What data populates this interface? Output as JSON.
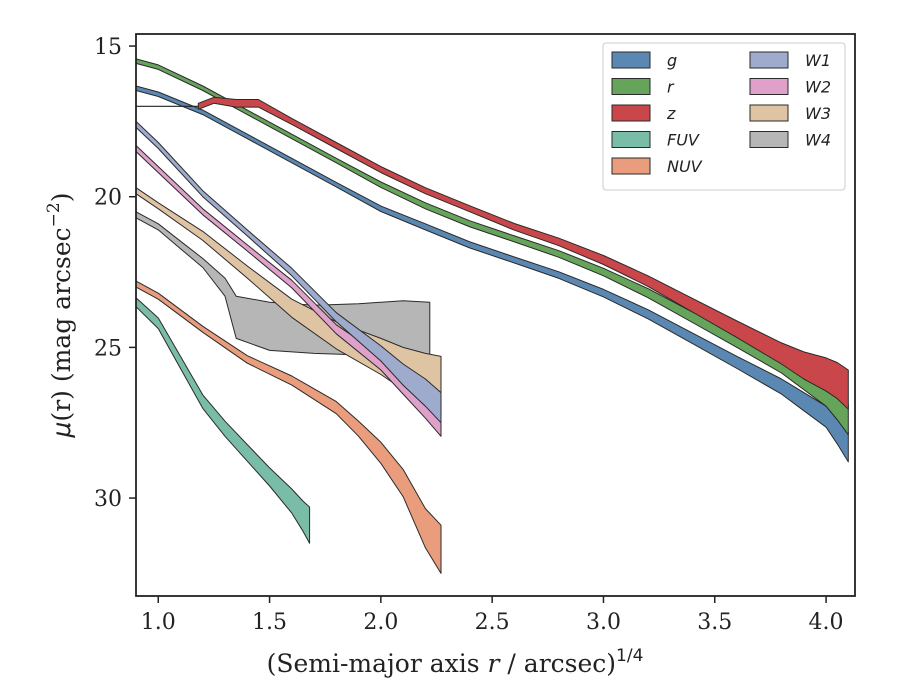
{
  "chart_data": {
    "type": "area",
    "xlabel": "(Semi-major axis r / arcsec)",
    "xlabel_prefix": "(Semi-major axis ",
    "xlabel_var": "r",
    "xlabel_suffix": " / arcsec)",
    "xlabel_sup": "1/4",
    "ylabel": "μ(r) (mag arcsec⁻²)",
    "ylabel_mu": "μ",
    "ylabel_paren": "(r)",
    "ylabel_unit": " (mag arcsec",
    "ylabel_sup": "−2",
    "ylabel_close": ")",
    "xlim": [
      0.9,
      4.13
    ],
    "ylim": [
      33.25,
      14.6
    ],
    "y_inverted": true,
    "xticks": [
      "1.0",
      "1.5",
      "2.0",
      "2.5",
      "3.0",
      "3.5",
      "4.0"
    ],
    "xtick_values": [
      1.0,
      1.5,
      2.0,
      2.5,
      3.0,
      3.5,
      4.0
    ],
    "yticks": [
      "15",
      "20",
      "25",
      "30"
    ],
    "ytick_values": [
      15,
      20,
      25,
      30
    ],
    "grid": false,
    "legend_placement": "top-right",
    "legend_columns": 2,
    "series": [
      {
        "name": "g",
        "color": "#5b88b2",
        "x": [
          0.9,
          1.0,
          1.2,
          1.4,
          1.6,
          1.8,
          2.0,
          2.2,
          2.4,
          2.6,
          2.8,
          3.0,
          3.2,
          3.4,
          3.6,
          3.8,
          3.9,
          4.0,
          4.05,
          4.1
        ],
        "y": [
          16.4,
          16.6,
          17.2,
          18.0,
          18.8,
          19.6,
          20.4,
          21.0,
          21.6,
          22.1,
          22.6,
          23.2,
          23.9,
          24.7,
          25.5,
          26.3,
          26.8,
          27.3,
          27.8,
          28.3
        ],
        "w": [
          0.15,
          0.15,
          0.15,
          0.15,
          0.15,
          0.15,
          0.18,
          0.2,
          0.2,
          0.2,
          0.22,
          0.25,
          0.3,
          0.35,
          0.4,
          0.5,
          0.6,
          0.7,
          0.8,
          1.0
        ]
      },
      {
        "name": "r",
        "color": "#66a35b",
        "x": [
          0.9,
          1.0,
          1.2,
          1.4,
          1.6,
          1.8,
          2.0,
          2.2,
          2.4,
          2.6,
          2.8,
          3.0,
          3.2,
          3.4,
          3.6,
          3.8,
          3.9,
          4.0,
          4.05,
          4.1
        ],
        "y": [
          15.5,
          15.7,
          16.4,
          17.2,
          18.0,
          18.8,
          19.6,
          20.3,
          20.9,
          21.4,
          21.9,
          22.5,
          23.2,
          24.0,
          24.8,
          25.6,
          26.1,
          26.6,
          27.0,
          27.4
        ],
        "w": [
          0.15,
          0.15,
          0.15,
          0.15,
          0.15,
          0.15,
          0.18,
          0.2,
          0.2,
          0.2,
          0.22,
          0.25,
          0.3,
          0.35,
          0.4,
          0.5,
          0.6,
          0.7,
          0.8,
          1.0
        ]
      },
      {
        "name": "z",
        "color": "#c9474a",
        "x": [
          1.18,
          1.25,
          1.35,
          1.45,
          1.6,
          1.8,
          2.0,
          2.2,
          2.4,
          2.6,
          2.8,
          3.0,
          3.2,
          3.4,
          3.6,
          3.8,
          3.9,
          4.0,
          4.05,
          4.1
        ],
        "y": [
          17.0,
          16.8,
          16.9,
          16.9,
          17.5,
          18.3,
          19.1,
          19.8,
          20.4,
          21.0,
          21.5,
          22.1,
          22.8,
          23.6,
          24.4,
          25.2,
          25.6,
          25.9,
          26.1,
          26.4
        ],
        "w": [
          0.2,
          0.2,
          0.25,
          0.25,
          0.2,
          0.2,
          0.2,
          0.2,
          0.2,
          0.22,
          0.25,
          0.3,
          0.35,
          0.45,
          0.55,
          0.7,
          0.9,
          1.1,
          1.2,
          1.3
        ]
      },
      {
        "name": "FUV",
        "color": "#79bda8",
        "x": [
          0.9,
          1.0,
          1.1,
          1.2,
          1.3,
          1.4,
          1.5,
          1.6,
          1.65,
          1.68
        ],
        "y": [
          23.5,
          24.2,
          25.5,
          26.8,
          27.7,
          28.5,
          29.3,
          30.1,
          30.6,
          30.9
        ],
        "w": [
          0.3,
          0.35,
          0.4,
          0.45,
          0.5,
          0.55,
          0.6,
          0.8,
          1.0,
          1.2
        ]
      },
      {
        "name": "NUV",
        "color": "#e99d7d",
        "x": [
          0.9,
          1.0,
          1.2,
          1.4,
          1.6,
          1.8,
          1.9,
          2.0,
          2.1,
          2.2,
          2.27
        ],
        "y": [
          22.9,
          23.3,
          24.4,
          25.4,
          26.1,
          27.0,
          27.7,
          28.5,
          29.5,
          31.0,
          31.7
        ],
        "w": [
          0.2,
          0.2,
          0.2,
          0.25,
          0.3,
          0.4,
          0.5,
          0.7,
          0.9,
          1.3,
          1.6
        ]
      },
      {
        "name": "W1",
        "color": "#9eabcd",
        "x": [
          0.9,
          1.0,
          1.2,
          1.4,
          1.6,
          1.8,
          2.0,
          2.1,
          2.2,
          2.27
        ],
        "y": [
          17.6,
          18.3,
          19.9,
          21.2,
          22.5,
          24.0,
          25.2,
          25.9,
          26.5,
          27.0
        ],
        "w": [
          0.2,
          0.2,
          0.2,
          0.2,
          0.25,
          0.3,
          0.5,
          0.7,
          0.9,
          1.0
        ]
      },
      {
        "name": "W2",
        "color": "#dfa1ca",
        "x": [
          0.9,
          1.0,
          1.2,
          1.4,
          1.6,
          1.8,
          2.0,
          2.1,
          2.2,
          2.27
        ],
        "y": [
          18.4,
          19.1,
          20.5,
          21.7,
          22.9,
          24.4,
          25.5,
          26.2,
          26.9,
          27.4
        ],
        "w": [
          0.2,
          0.2,
          0.2,
          0.2,
          0.25,
          0.3,
          0.5,
          0.7,
          0.9,
          1.1
        ]
      },
      {
        "name": "W3",
        "color": "#dfc4a4",
        "x": [
          0.9,
          1.0,
          1.2,
          1.4,
          1.6,
          1.8,
          2.0,
          2.1,
          2.2,
          2.27
        ],
        "y": [
          19.8,
          20.3,
          21.3,
          22.5,
          23.7,
          24.6,
          25.3,
          25.7,
          26.0,
          26.2
        ],
        "w": [
          0.2,
          0.2,
          0.3,
          0.4,
          0.6,
          0.9,
          1.2,
          1.4,
          1.6,
          1.8
        ]
      },
      {
        "name": "W4",
        "color": "#b6b6b6",
        "x": [
          0.9,
          1.0,
          1.1,
          1.2,
          1.3,
          1.35,
          1.5,
          1.7,
          1.9,
          2.1,
          2.22
        ],
        "y": [
          20.6,
          21.0,
          21.6,
          22.2,
          23.0,
          24.0,
          24.3,
          24.4,
          24.4,
          24.4,
          24.6
        ],
        "w": [
          0.2,
          0.2,
          0.25,
          0.3,
          0.6,
          1.4,
          1.6,
          1.6,
          1.7,
          1.9,
          2.2
        ]
      }
    ]
  }
}
